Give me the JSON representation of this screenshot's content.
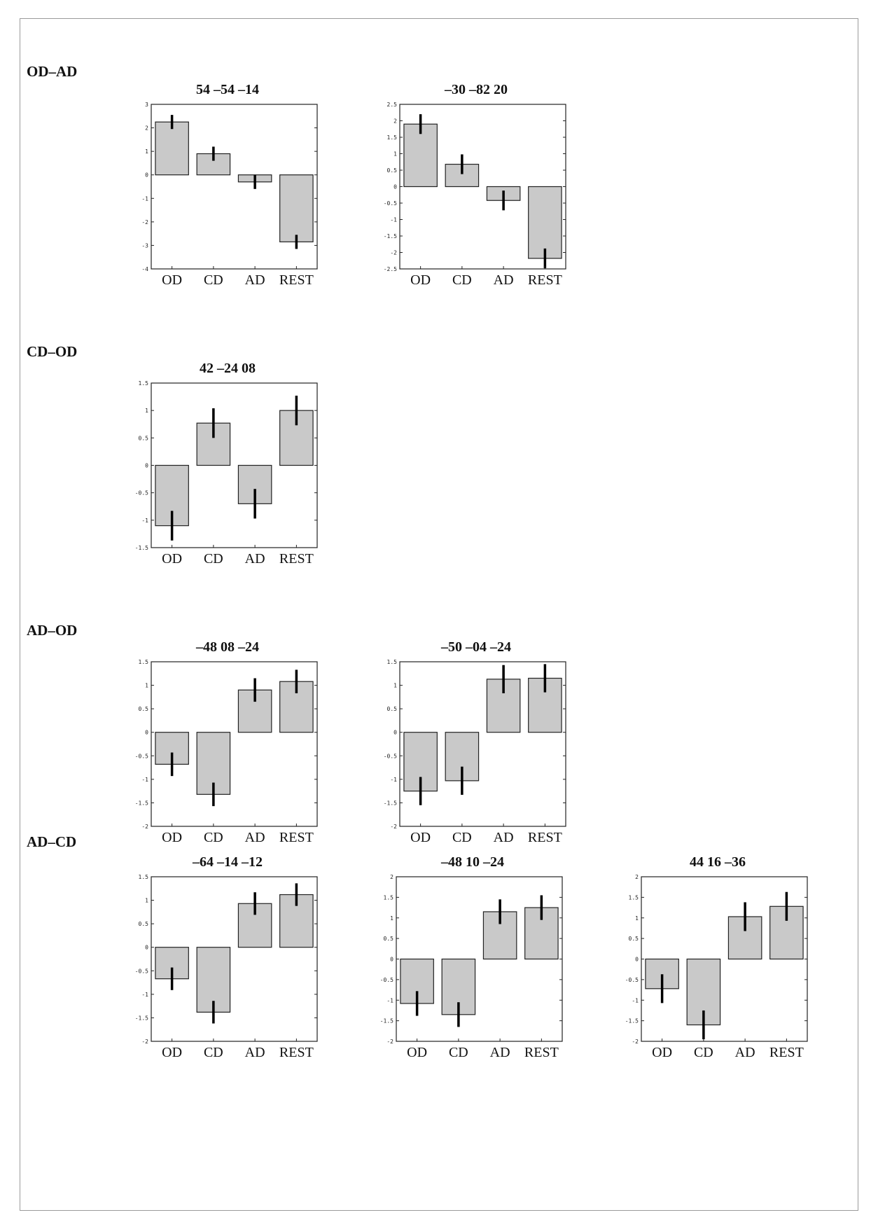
{
  "sections": [
    {
      "label": "OD–AD"
    },
    {
      "label": "CD–OD"
    },
    {
      "label": "AD–OD"
    },
    {
      "label": "AD–CD"
    }
  ],
  "chart_data": [
    {
      "type": "bar",
      "section": "OD–AD",
      "title": "54 –54 –14",
      "categories": [
        "OD",
        "CD",
        "AD",
        "REST"
      ],
      "values": [
        2.25,
        0.9,
        -0.3,
        -2.85
      ],
      "error": [
        0.3,
        0.3,
        0.3,
        0.3
      ],
      "ylim": [
        -4,
        3
      ],
      "yticks": [
        "3",
        "2",
        "1",
        "0",
        "-1",
        "-2",
        "-3",
        "-4"
      ]
    },
    {
      "type": "bar",
      "section": "OD–AD",
      "title": "–30 –82 20",
      "categories": [
        "OD",
        "CD",
        "AD",
        "REST"
      ],
      "values": [
        1.9,
        0.68,
        -0.42,
        -2.18
      ],
      "error": [
        0.3,
        0.3,
        0.3,
        0.3
      ],
      "ylim": [
        -2.5,
        2.5
      ],
      "yticks": [
        "2.5",
        "2",
        "1.5",
        "1",
        "0.5",
        "0",
        "-0.5",
        "-1",
        "-1.5",
        "-2",
        "-2.5"
      ]
    },
    {
      "type": "bar",
      "section": "CD–OD",
      "title": "42 –24 08",
      "categories": [
        "OD",
        "CD",
        "AD",
        "REST"
      ],
      "values": [
        -1.1,
        0.77,
        -0.7,
        1.0
      ],
      "error": [
        0.27,
        0.27,
        0.27,
        0.27
      ],
      "ylim": [
        -1.5,
        1.5
      ],
      "yticks": [
        "1.5",
        "1",
        "0.5",
        "0",
        "-0.5",
        "-1",
        "-1.5"
      ]
    },
    {
      "type": "bar",
      "section": "AD–OD",
      "title": "–48 08 –24",
      "categories": [
        "OD",
        "CD",
        "AD",
        "REST"
      ],
      "values": [
        -0.68,
        -1.32,
        0.9,
        1.08
      ],
      "error": [
        0.25,
        0.25,
        0.25,
        0.25
      ],
      "ylim": [
        -2,
        1.5
      ],
      "yticks": [
        "1.5",
        "1",
        "0.5",
        "0",
        "-0.5",
        "-1",
        "-1.5",
        "-2"
      ]
    },
    {
      "type": "bar",
      "section": "AD–OD",
      "title": "–50 –04 –24",
      "categories": [
        "OD",
        "CD",
        "AD",
        "REST"
      ],
      "values": [
        -1.25,
        -1.03,
        1.13,
        1.15
      ],
      "error": [
        0.3,
        0.3,
        0.3,
        0.3
      ],
      "ylim": [
        -2,
        1.5
      ],
      "yticks": [
        "1.5",
        "1",
        "0.5",
        "0",
        "-0.5",
        "-1",
        "-1.5",
        "-2"
      ]
    },
    {
      "type": "bar",
      "section": "AD–CD",
      "title": "–64 –14 –12",
      "categories": [
        "OD",
        "CD",
        "AD",
        "REST"
      ],
      "values": [
        -0.67,
        -1.38,
        0.93,
        1.12
      ],
      "error": [
        0.24,
        0.24,
        0.24,
        0.24
      ],
      "ylim": [
        -2,
        1.5
      ],
      "yticks": [
        "1.5",
        "1",
        "0.5",
        "0",
        "-0.5",
        "-1",
        "-1.5",
        "-2"
      ]
    },
    {
      "type": "bar",
      "section": "AD–CD",
      "title": "–48 10 –24",
      "categories": [
        "OD",
        "CD",
        "AD",
        "REST"
      ],
      "values": [
        -1.08,
        -1.35,
        1.15,
        1.25
      ],
      "error": [
        0.3,
        0.3,
        0.3,
        0.3
      ],
      "ylim": [
        -2,
        2
      ],
      "yticks": [
        "2",
        "1.5",
        "1",
        "0.5",
        "0",
        "-0.5",
        "-1",
        "-1.5",
        "-2"
      ]
    },
    {
      "type": "bar",
      "section": "AD–CD",
      "title": "44 16 –36",
      "categories": [
        "OD",
        "CD",
        "AD",
        "REST"
      ],
      "values": [
        -0.72,
        -1.6,
        1.03,
        1.28
      ],
      "error": [
        0.35,
        0.35,
        0.35,
        0.35
      ],
      "ylim": [
        -2,
        2
      ],
      "yticks": [
        "2",
        "1.5",
        "1",
        "0.5",
        "0",
        "-0.5",
        "-1",
        "-1.5",
        "-2"
      ]
    }
  ],
  "colors": {
    "bar_fill": "#c9c9c9",
    "bar_stroke": "#222222",
    "error_bar": "#000000",
    "frame": "#9a9a9a"
  }
}
